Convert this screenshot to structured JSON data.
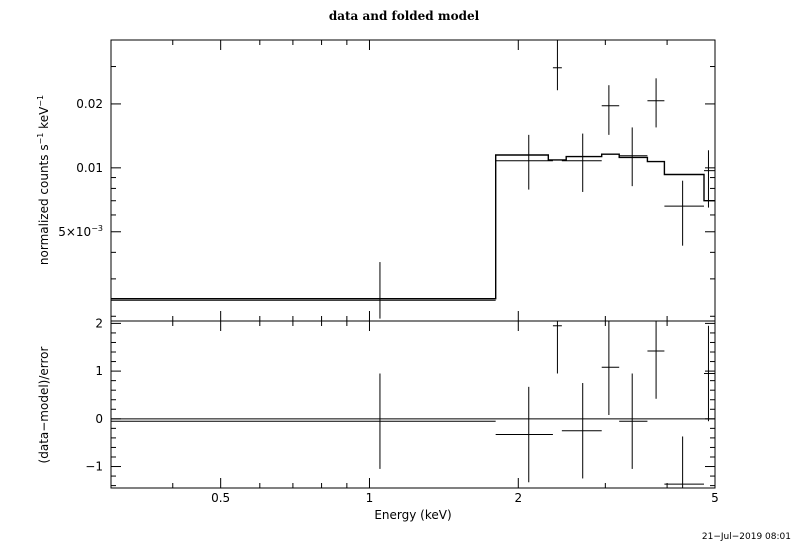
{
  "chart_data": {
    "title": "data and folded model",
    "timestamp": "21−Jul−2019 08:01",
    "xlabel": "Energy (keV)",
    "x_scale": "log",
    "xlim": [
      0.3,
      5.0
    ],
    "x_ticks": [
      {
        "value": 0.5,
        "label": "0.5"
      },
      {
        "value": 1,
        "label": "1"
      },
      {
        "value": 2,
        "label": "2"
      },
      {
        "value": 5,
        "label": "5"
      }
    ],
    "panels": [
      {
        "id": "upper",
        "type": "step",
        "y_scale": "log",
        "ylim": [
          0.0019,
          0.04
        ],
        "ylabel_main": "normalized counts s",
        "ylabel_sup1": "−1",
        "ylabel_mid": " keV",
        "ylabel_sup2": "−1",
        "y_ticks": [
          {
            "value": 0.02,
            "label": "0.02"
          },
          {
            "value": 0.01,
            "label": "0.01"
          },
          {
            "value": 0.005,
            "label_main": "5×10",
            "label_sup": "−3"
          }
        ],
        "data": [
          {
            "x": 1.05,
            "xlo": 0.3,
            "xhi": 1.8,
            "y": 0.00238,
            "ylo": 0.00195,
            "yhi": 0.0036
          },
          {
            "x": 2.1,
            "xlo": 1.8,
            "xhi": 2.35,
            "y": 0.0108,
            "ylo": 0.0079,
            "yhi": 0.0143
          },
          {
            "x": 2.4,
            "xlo": 2.35,
            "xhi": 2.45,
            "y": 0.0296,
            "ylo": 0.0232,
            "yhi": 0.04
          },
          {
            "x": 2.7,
            "xlo": 2.45,
            "xhi": 2.95,
            "y": 0.0108,
            "ylo": 0.0077,
            "yhi": 0.0145
          },
          {
            "x": 3.05,
            "xlo": 2.95,
            "xhi": 3.2,
            "y": 0.0196,
            "ylo": 0.0143,
            "yhi": 0.0245
          },
          {
            "x": 3.4,
            "xlo": 3.2,
            "xhi": 3.65,
            "y": 0.0114,
            "ylo": 0.0082,
            "yhi": 0.0155
          },
          {
            "x": 3.8,
            "xlo": 3.65,
            "xhi": 3.95,
            "y": 0.0207,
            "ylo": 0.0155,
            "yhi": 0.0264
          },
          {
            "x": 4.3,
            "xlo": 3.95,
            "xhi": 4.75,
            "y": 0.0066,
            "ylo": 0.0043,
            "yhi": 0.0087
          },
          {
            "x": 4.85,
            "xlo": 4.75,
            "xhi": 5.0,
            "y": 0.0097,
            "ylo": 0.0065,
            "yhi": 0.0121
          }
        ],
        "model": [
          {
            "xlo": 0.3,
            "xhi": 1.8,
            "y": 0.00242
          },
          {
            "xlo": 1.8,
            "xhi": 2.3,
            "y": 0.0115
          },
          {
            "xlo": 2.3,
            "xhi": 2.5,
            "y": 0.0109
          },
          {
            "xlo": 2.5,
            "xhi": 2.95,
            "y": 0.0113
          },
          {
            "xlo": 2.95,
            "xhi": 3.2,
            "y": 0.0116
          },
          {
            "xlo": 3.2,
            "xhi": 3.65,
            "y": 0.0112
          },
          {
            "xlo": 3.65,
            "xhi": 3.95,
            "y": 0.0107
          },
          {
            "xlo": 3.95,
            "xhi": 4.75,
            "y": 0.0093
          },
          {
            "xlo": 4.75,
            "xhi": 5.0,
            "y": 0.007
          }
        ]
      },
      {
        "id": "lower",
        "type": "scatter",
        "y_scale": "linear",
        "ylim": [
          -1.45,
          2.05
        ],
        "ylabel": "(data−model)/error",
        "y_ticks": [
          {
            "value": 2,
            "label": "2"
          },
          {
            "value": 1,
            "label": "1"
          },
          {
            "value": 0,
            "label": "0"
          },
          {
            "value": -1,
            "label": "−1"
          }
        ],
        "zero_line": 0,
        "data": [
          {
            "x": 1.05,
            "xlo": 0.3,
            "xhi": 1.8,
            "y": -0.05,
            "ylo": -1.05,
            "yhi": 0.95
          },
          {
            "x": 2.1,
            "xlo": 1.8,
            "xhi": 2.35,
            "y": -0.33,
            "ylo": -1.33,
            "yhi": 0.67
          },
          {
            "x": 2.4,
            "xlo": 2.35,
            "xhi": 2.45,
            "y": 1.95,
            "ylo": 0.95,
            "yhi": 2.05
          },
          {
            "x": 2.7,
            "xlo": 2.45,
            "xhi": 2.95,
            "y": -0.25,
            "ylo": -1.25,
            "yhi": 0.75
          },
          {
            "x": 3.05,
            "xlo": 2.95,
            "xhi": 3.2,
            "y": 1.08,
            "ylo": 0.08,
            "yhi": 2.05
          },
          {
            "x": 3.4,
            "xlo": 3.2,
            "xhi": 3.65,
            "y": -0.05,
            "ylo": -1.05,
            "yhi": 0.95
          },
          {
            "x": 3.8,
            "xlo": 3.65,
            "xhi": 3.95,
            "y": 1.42,
            "ylo": 0.42,
            "yhi": 2.05
          },
          {
            "x": 4.3,
            "xlo": 3.95,
            "xhi": 4.75,
            "y": -1.37,
            "ylo": -1.45,
            "yhi": -0.37
          },
          {
            "x": 4.85,
            "xlo": 4.75,
            "xhi": 5.0,
            "y": 0.95,
            "ylo": -0.05,
            "yhi": 1.95
          }
        ]
      }
    ]
  }
}
